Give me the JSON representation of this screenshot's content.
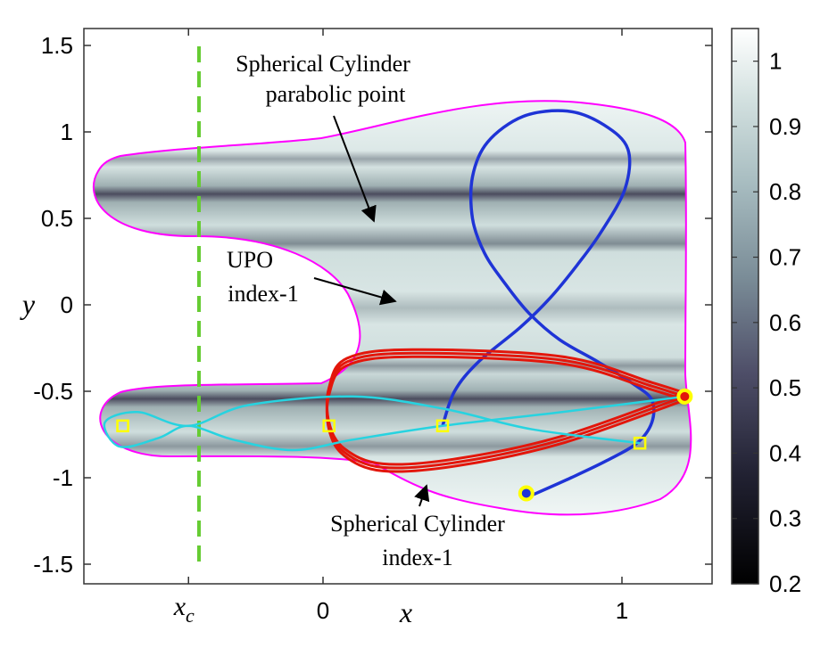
{
  "chart_data": {
    "type": "heatmap",
    "xlabel": "x",
    "ylabel": "y",
    "xlim": [
      -0.8,
      1.3
    ],
    "ylim": [
      -1.6,
      1.6
    ],
    "x_ticks": [
      {
        "value": -0.45,
        "label": "x_c"
      },
      {
        "value": 0,
        "label": "0"
      },
      {
        "value": 1,
        "label": "1"
      }
    ],
    "y_ticks": [
      1.5,
      1,
      0.5,
      0,
      -0.5,
      -1,
      -1.5
    ],
    "y_tick_labels": [
      "1.5",
      "1",
      "0.5",
      "0",
      "-0.5",
      "-1",
      "-1.5"
    ],
    "x_c_label_main": "x",
    "x_c_label_sub": "c",
    "colorbar": {
      "range": [
        0.2,
        1.05
      ],
      "ticks": [
        1,
        0.9,
        0.8,
        0.7,
        0.6,
        0.5,
        0.4,
        0.3,
        0.2
      ],
      "tick_labels": [
        "1",
        "0.9",
        "0.8",
        "0.7",
        "0.6",
        "0.5",
        "0.4",
        "0.3",
        "0.2"
      ],
      "colormap": "bone"
    },
    "x_c_value": -0.45,
    "boundary_color": "#ff00ff",
    "xc_line_color": "#66cc33",
    "annotations": [
      {
        "lines": [
          "Spherical Cylinder",
          "parabolic point"
        ],
        "arrow_to": [
          0.17,
          0.47
        ]
      },
      {
        "lines": [
          "UPO",
          "index-1"
        ],
        "arrow_to": [
          0.22,
          0.0
        ]
      },
      {
        "lines": [
          "Spherical Cylinder",
          "index-1"
        ],
        "arrow_to": [
          0.35,
          -1.02
        ]
      }
    ],
    "series": [
      {
        "kind": "figure-eight",
        "color": "#1f34d6",
        "points": [
          [
            0.4,
            -0.7
          ],
          [
            0.44,
            -0.5
          ],
          [
            0.52,
            -0.33
          ],
          [
            0.66,
            -0.13
          ],
          [
            0.76,
            0.04
          ],
          [
            0.85,
            0.23
          ],
          [
            0.93,
            0.42
          ],
          [
            1.01,
            0.67
          ],
          [
            1.02,
            0.9
          ],
          [
            0.94,
            1.04
          ],
          [
            0.82,
            1.12
          ],
          [
            0.67,
            1.09
          ],
          [
            0.55,
            0.94
          ],
          [
            0.5,
            0.74
          ],
          [
            0.5,
            0.5
          ],
          [
            0.54,
            0.3
          ],
          [
            0.61,
            0.12
          ],
          [
            0.69,
            -0.05
          ],
          [
            0.79,
            -0.2
          ],
          [
            0.92,
            -0.33
          ],
          [
            1.04,
            -0.46
          ],
          [
            1.1,
            -0.55
          ],
          [
            1.1,
            -0.68
          ],
          [
            1.05,
            -0.8
          ],
          [
            0.95,
            -0.9
          ],
          [
            0.83,
            -1.0
          ],
          [
            0.7,
            -1.1
          ]
        ]
      },
      {
        "kind": "red-loop",
        "color": "#e3160b",
        "points": [
          [
            1.21,
            -0.53
          ],
          [
            1.1,
            -0.47
          ],
          [
            0.8,
            -0.32
          ],
          [
            0.3,
            -0.28
          ],
          [
            0.08,
            -0.33
          ],
          [
            0.02,
            -0.5
          ],
          [
            0.02,
            -0.7
          ],
          [
            0.07,
            -0.85
          ],
          [
            0.2,
            -0.94
          ],
          [
            0.45,
            -0.91
          ],
          [
            0.8,
            -0.78
          ],
          [
            1.21,
            -0.53
          ]
        ]
      },
      {
        "kind": "cyan-trajectory",
        "color": "#27d3e0",
        "points": [
          [
            1.06,
            -0.8
          ],
          [
            0.7,
            -0.72
          ],
          [
            0.4,
            -0.6
          ],
          [
            0.1,
            -0.53
          ],
          [
            -0.25,
            -0.58
          ],
          [
            -0.45,
            -0.7
          ],
          [
            -0.62,
            -0.62
          ],
          [
            -0.73,
            -0.68
          ],
          [
            -0.68,
            -0.82
          ],
          [
            -0.55,
            -0.77
          ],
          [
            -0.45,
            -0.7
          ],
          [
            -0.3,
            -0.78
          ],
          [
            -0.1,
            -0.84
          ],
          [
            0.1,
            -0.78
          ],
          [
            0.4,
            -0.7
          ],
          [
            0.8,
            -0.62
          ],
          [
            1.21,
            -0.53
          ]
        ]
      }
    ],
    "markers": {
      "squares": [
        [
          -0.67,
          -0.7
        ],
        [
          0.02,
          -0.7
        ],
        [
          0.4,
          -0.7
        ],
        [
          1.06,
          -0.8
        ]
      ],
      "circles": [
        [
          1.21,
          -0.53
        ],
        [
          0.68,
          -1.09
        ]
      ]
    }
  }
}
